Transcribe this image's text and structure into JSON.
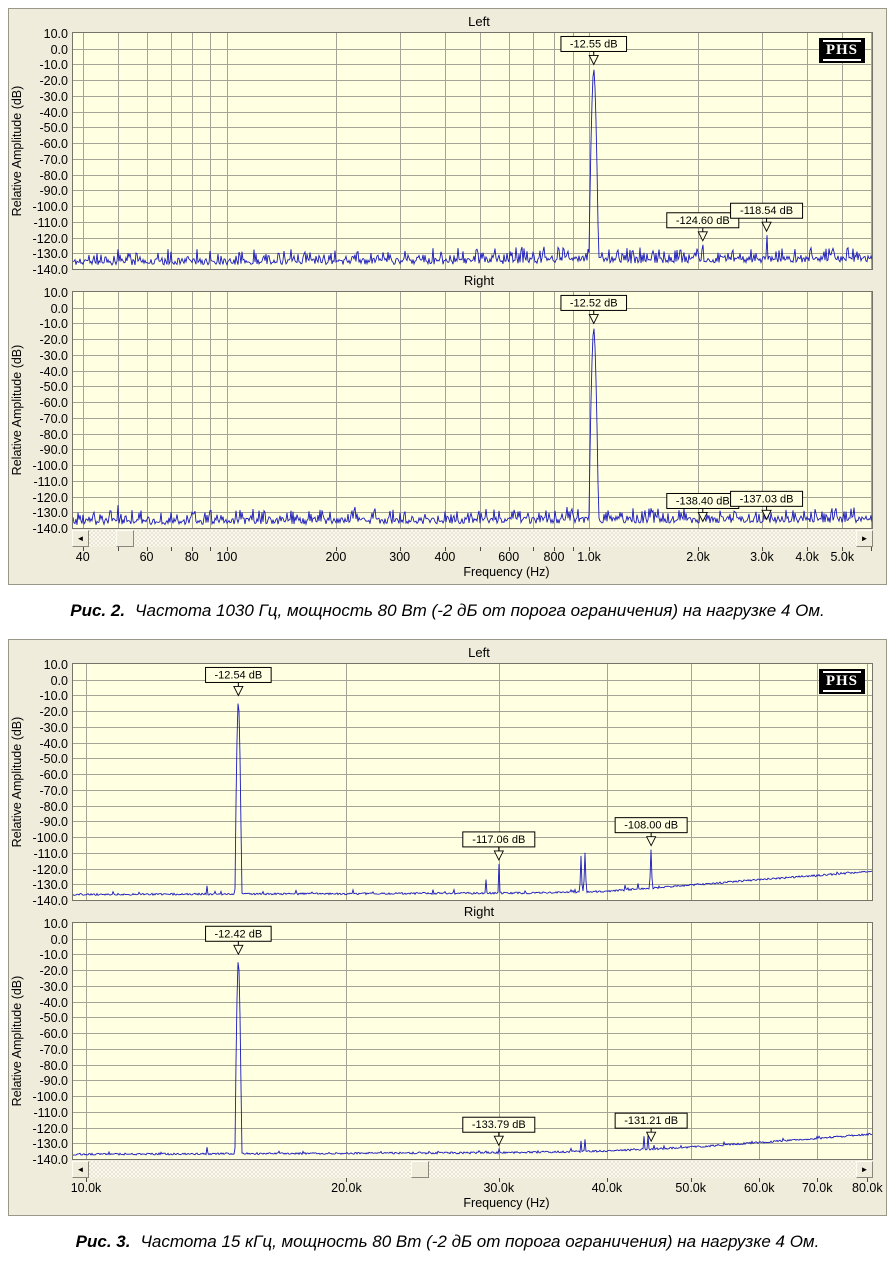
{
  "ui": {
    "scroll_left_icon": "◄",
    "scroll_right_icon": "►",
    "colors": {
      "plot_bg": "#ffffe1",
      "grid": "#a3a396",
      "trace": "#1a1abc",
      "panel_bg": "#efecdb",
      "marker_border": "#000000",
      "logo_bg": "#000000",
      "logo_text": "#ffffff"
    }
  },
  "chart_data": [
    {
      "type": "line",
      "logo": "PHS",
      "ylabel": "Relative Amplitude (dB)",
      "xlabel": "Frequency (Hz)",
      "x_scale": "log",
      "x_range_hz": [
        37.6,
        6040
      ],
      "ylim_db": [
        10,
        -140
      ],
      "y_tick_labels": [
        "10.0",
        "0.0",
        "-10.0",
        "-20.0",
        "-30.0",
        "-40.0",
        "-50.0",
        "-60.0",
        "-70.0",
        "-80.0",
        "-90.0",
        "-100.0",
        "-110.0",
        "-120.0",
        "-130.0",
        "-140.0"
      ],
      "x_gridlines_hz": [
        40,
        50,
        60,
        70,
        80,
        90,
        100,
        200,
        300,
        400,
        500,
        600,
        700,
        800,
        900,
        1000,
        2000,
        3000,
        4000,
        5000,
        6000
      ],
      "x_ticks": [
        {
          "f": 40,
          "label": "40"
        },
        {
          "f": 60,
          "label": "60"
        },
        {
          "f": 80,
          "label": "80"
        },
        {
          "f": 100,
          "label": "100"
        },
        {
          "f": 200,
          "label": "200"
        },
        {
          "f": 300,
          "label": "300"
        },
        {
          "f": 400,
          "label": "400"
        },
        {
          "f": 600,
          "label": "600"
        },
        {
          "f": 800,
          "label": "800"
        },
        {
          "f": 1000,
          "label": "1.0k"
        },
        {
          "f": 2000,
          "label": "2.0k"
        },
        {
          "f": 3000,
          "label": "3.0k"
        },
        {
          "f": 4000,
          "label": "4.0k"
        },
        {
          "f": 5000,
          "label": "5.0k"
        }
      ],
      "scrollbar_thumb_pct": 3.5,
      "channels": [
        {
          "name": "Left",
          "seed": 11,
          "jitter_db": 2.0,
          "spike_prob": 0.3,
          "spike_amp_db": 7,
          "floor": [
            [
              37.6,
              -135.5
            ],
            [
              500,
              -135
            ],
            [
              900,
              -134
            ],
            [
              1200,
              -134.5
            ],
            [
              6040,
              -133.5
            ]
          ],
          "peak": {
            "f": 1030,
            "db": -12.55,
            "skirt": 5
          },
          "spikes": [
            {
              "f": 50,
              "db": -127.5
            },
            {
              "f": 70,
              "db": -129
            },
            {
              "f": 90,
              "db": -128.5
            },
            {
              "f": 110,
              "db": -129
            },
            {
              "f": 150,
              "db": -127.5
            },
            {
              "f": 170,
              "db": -129.5
            },
            {
              "f": 230,
              "db": -129
            },
            {
              "f": 310,
              "db": -128.5
            },
            {
              "f": 390,
              "db": -129
            },
            {
              "f": 490,
              "db": -127.5
            },
            {
              "f": 550,
              "db": -127
            },
            {
              "f": 650,
              "db": -128
            },
            {
              "f": 750,
              "db": -128.5
            },
            {
              "f": 850,
              "db": -127.5
            },
            {
              "f": 1200,
              "db": -128
            },
            {
              "f": 1500,
              "db": -128.5
            },
            {
              "f": 1750,
              "db": -128
            },
            {
              "f": 2060,
              "db": -124.6
            },
            {
              "f": 2500,
              "db": -128
            },
            {
              "f": 2800,
              "db": -127.5
            },
            {
              "f": 3090,
              "db": -118.54
            },
            {
              "f": 3400,
              "db": -127
            },
            {
              "f": 3700,
              "db": -127.5
            },
            {
              "f": 4100,
              "db": -126.5
            },
            {
              "f": 4600,
              "db": -127
            },
            {
              "f": 5200,
              "db": -126.5
            }
          ],
          "markers": [
            {
              "text": "-12.55 dB",
              "f": 1030,
              "db": -12.55
            },
            {
              "text": "-124.60 dB",
              "f": 2060,
              "db": -124.6
            },
            {
              "text": "-118.54 dB",
              "f": 3090,
              "db": -118.54
            }
          ]
        },
        {
          "name": "Right",
          "seed": 23,
          "jitter_db": 2.0,
          "spike_prob": 0.28,
          "spike_amp_db": 7,
          "floor": [
            [
              37.6,
              -136
            ],
            [
              6040,
              -134.5
            ]
          ],
          "peak": {
            "f": 1030,
            "db": -12.52,
            "skirt": 5
          },
          "spikes": [
            {
              "f": 50,
              "db": -125.5
            },
            {
              "f": 70,
              "db": -130
            },
            {
              "f": 90,
              "db": -129
            },
            {
              "f": 110,
              "db": -130
            },
            {
              "f": 150,
              "db": -129
            },
            {
              "f": 310,
              "db": -129.5
            },
            {
              "f": 520,
              "db": -128
            },
            {
              "f": 620,
              "db": -128.5
            },
            {
              "f": 1500,
              "db": -129
            },
            {
              "f": 2060,
              "db": -138.4
            },
            {
              "f": 2300,
              "db": -129
            },
            {
              "f": 3090,
              "db": -137.03
            },
            {
              "f": 3500,
              "db": -128.5
            },
            {
              "f": 4200,
              "db": -128
            },
            {
              "f": 4800,
              "db": -127.5
            },
            {
              "f": 5400,
              "db": -127
            }
          ],
          "markers": [
            {
              "text": "-12.52 dB",
              "f": 1030,
              "db": -12.52
            },
            {
              "text": "-138.40 dB",
              "f": 2060,
              "db": -138.4
            },
            {
              "text": "-137.03 dB",
              "f": 3090,
              "db": -137.03
            }
          ]
        }
      ],
      "caption": {
        "prefix": "Рис. 2.",
        "text": "Частота 1030 Гц, мощность 80 Вт (-2 дБ от порога ограничения) на нагрузке 4 Ом."
      }
    },
    {
      "type": "line",
      "logo": "PHS",
      "ylabel": "Relative Amplitude (dB)",
      "xlabel": "Frequency (Hz)",
      "x_scale": "log",
      "x_range_hz": [
        9660,
        81000
      ],
      "ylim_db": [
        10,
        -140
      ],
      "y_tick_labels": [
        "10.0",
        "0.0",
        "-10.0",
        "-20.0",
        "-30.0",
        "-40.0",
        "-50.0",
        "-60.0",
        "-70.0",
        "-80.0",
        "-90.0",
        "-100.0",
        "-110.0",
        "-120.0",
        "-130.0",
        "-140.0"
      ],
      "x_gridlines_hz": [
        10000,
        20000,
        30000,
        40000,
        50000,
        60000,
        70000,
        80000
      ],
      "x_ticks": [
        {
          "f": 10000,
          "label": "10.0k"
        },
        {
          "f": 20000,
          "label": "20.0k"
        },
        {
          "f": 30000,
          "label": "30.0k"
        },
        {
          "f": 40000,
          "label": "40.0k"
        },
        {
          "f": 50000,
          "label": "50.0k"
        },
        {
          "f": 60000,
          "label": "60.0k"
        },
        {
          "f": 70000,
          "label": "70.0k"
        },
        {
          "f": 80000,
          "label": "80.0k"
        }
      ],
      "scrollbar_thumb_pct": 42,
      "channels": [
        {
          "name": "Left",
          "seed": 37,
          "jitter_db": 0.6,
          "spike_prob": 0.03,
          "spike_amp_db": 2,
          "floor": [
            [
              9660,
              -136.5
            ],
            [
              20000,
              -136
            ],
            [
              33000,
              -135.5
            ],
            [
              40000,
              -134.5
            ],
            [
              50000,
              -130.5
            ],
            [
              60000,
              -127
            ],
            [
              70000,
              -124.5
            ],
            [
              81000,
              -121.5
            ]
          ],
          "peak": {
            "f": 15000,
            "db": -12.54,
            "skirt": 3.5
          },
          "spikes": [
            {
              "f": 13800,
              "db": -131
            },
            {
              "f": 29000,
              "db": -127
            },
            {
              "f": 30000,
              "db": -117.06
            },
            {
              "f": 37300,
              "db": -112
            },
            {
              "f": 37700,
              "db": -110
            },
            {
              "f": 42000,
              "db": -130.5
            },
            {
              "f": 43500,
              "db": -129.5
            },
            {
              "f": 45000,
              "db": -108.0
            },
            {
              "f": 58000,
              "db": -127.5
            },
            {
              "f": 61000,
              "db": -126.5
            },
            {
              "f": 64500,
              "db": -126
            },
            {
              "f": 69500,
              "db": -125.5
            }
          ],
          "markers": [
            {
              "text": "-12.54 dB",
              "f": 15000,
              "db": -12.54
            },
            {
              "text": "-117.06 dB",
              "f": 30000,
              "db": -117.06
            },
            {
              "text": "-108.00 dB",
              "f": 45000,
              "db": -108.0
            }
          ]
        },
        {
          "name": "Right",
          "seed": 53,
          "jitter_db": 0.6,
          "spike_prob": 0.03,
          "spike_amp_db": 2,
          "floor": [
            [
              9660,
              -137
            ],
            [
              30000,
              -136
            ],
            [
              40000,
              -135
            ],
            [
              50000,
              -132.5
            ],
            [
              60000,
              -129.5
            ],
            [
              70000,
              -127
            ],
            [
              81000,
              -124
            ]
          ],
          "peak": {
            "f": 15000,
            "db": -12.42,
            "skirt": 3.5
          },
          "spikes": [
            {
              "f": 13800,
              "db": -132.5
            },
            {
              "f": 29000,
              "db": -135
            },
            {
              "f": 30000,
              "db": -133.79
            },
            {
              "f": 37300,
              "db": -128.5
            },
            {
              "f": 37700,
              "db": -127.5
            },
            {
              "f": 44200,
              "db": -125.5
            },
            {
              "f": 44600,
              "db": -124.8
            },
            {
              "f": 45300,
              "db": -131.21
            },
            {
              "f": 58000,
              "db": -130
            },
            {
              "f": 64500,
              "db": -128.5
            }
          ],
          "markers": [
            {
              "text": "-12.42 dB",
              "f": 15000,
              "db": -12.42
            },
            {
              "text": "-133.79 dB",
              "f": 30000,
              "db": -133.79
            },
            {
              "text": "-131.21 dB",
              "f": 45000,
              "db": -131.21
            }
          ]
        }
      ],
      "caption": {
        "prefix": "Рис. 3.",
        "text": "Частота 15 кГц, мощность 80 Вт (-2 дБ от порога ограничения) на нагрузке 4 Ом."
      }
    }
  ]
}
